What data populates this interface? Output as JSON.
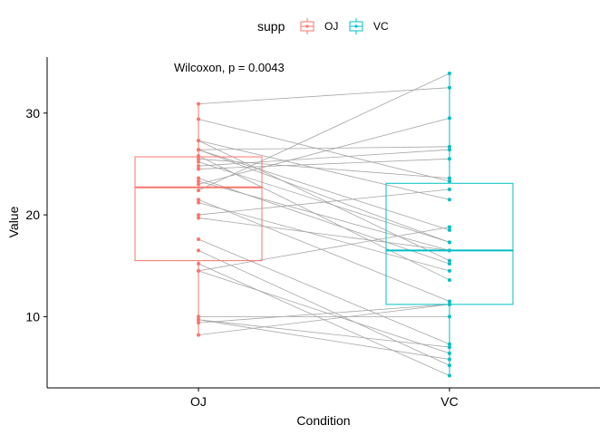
{
  "chart_data": {
    "type": "paired-boxplot",
    "xlabel": "Condition",
    "ylabel": "Value",
    "categories": [
      "OJ",
      "VC"
    ],
    "ylim": [
      3,
      35.5
    ],
    "yticks": [
      10,
      20,
      30
    ],
    "legend": {
      "title": "supp",
      "position": "top",
      "entries": [
        {
          "label": "OJ",
          "color": "#F8766D"
        },
        {
          "label": "VC",
          "color": "#00BFC4"
        }
      ]
    },
    "annotation": "Wilcoxon, p = 0.0043",
    "series": [
      {
        "name": "OJ",
        "color": "#F8766D",
        "box": {
          "q1": 15.5,
          "median": 22.7,
          "q3": 25.7,
          "whisker_low": 8.2,
          "whisker_high": 30.9
        },
        "values": [
          15.2,
          21.5,
          17.6,
          9.7,
          14.5,
          10.0,
          8.2,
          9.4,
          16.5,
          9.7,
          19.7,
          23.3,
          23.6,
          26.4,
          20.0,
          25.2,
          25.8,
          21.2,
          14.5,
          27.3,
          25.5,
          26.4,
          22.4,
          24.5,
          24.8,
          30.9,
          26.4,
          27.3,
          29.4,
          23.0
        ]
      },
      {
        "name": "VC",
        "color": "#00BFC4",
        "box": {
          "q1": 11.2,
          "median": 16.5,
          "q3": 23.1,
          "whisker_low": 4.2,
          "whisker_high": 33.9
        },
        "values": [
          4.2,
          11.5,
          7.3,
          5.8,
          6.4,
          10.0,
          11.2,
          11.2,
          5.2,
          7.0,
          16.5,
          16.5,
          15.2,
          17.3,
          22.5,
          17.3,
          13.6,
          14.5,
          18.8,
          15.5,
          23.6,
          18.5,
          33.9,
          25.5,
          26.4,
          32.5,
          26.7,
          21.5,
          23.3,
          29.5
        ]
      }
    ]
  }
}
